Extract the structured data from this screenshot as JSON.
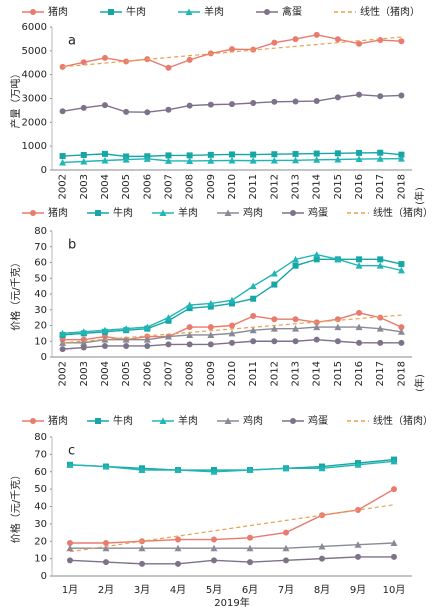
{
  "chart_data": [
    {
      "type": "line",
      "panel_label": "a",
      "ylabel": "产量（万吨）",
      "xlabel": "(年)",
      "categories": [
        "2002",
        "2003",
        "2004",
        "2005",
        "2006",
        "2007",
        "2008",
        "2009",
        "2010",
        "2011",
        "2012",
        "2013",
        "2014",
        "2015",
        "2016",
        "2017",
        "2018"
      ],
      "ylim": [
        0,
        6000
      ],
      "yticks": [
        0,
        1000,
        2000,
        3000,
        4000,
        5000,
        6000
      ],
      "series": [
        {
          "name": "猪肉",
          "color": "#ea7a6e",
          "marker": "circle",
          "values": [
            4327,
            4519,
            4702,
            4555,
            4650,
            4288,
            4621,
            4891,
            5071,
            5053,
            5343,
            5493,
            5671,
            5487,
            5299,
            5452,
            5404
          ]
        },
        {
          "name": "牛肉",
          "color": "#17a6a6",
          "marker": "square",
          "values": [
            585,
            630,
            676,
            568,
            577,
            613,
            613,
            636,
            653,
            648,
            662,
            673,
            689,
            700,
            717,
            726,
            644
          ]
        },
        {
          "name": "羊肉",
          "color": "#22b5b5",
          "marker": "triangle",
          "values": [
            317,
            357,
            399,
            435,
            469,
            383,
            380,
            389,
            399,
            393,
            401,
            408,
            428,
            441,
            459,
            471,
            475
          ]
        },
        {
          "name": "禽蛋",
          "color": "#7d7289",
          "marker": "circle",
          "values": [
            2463,
            2607,
            2724,
            2438,
            2424,
            2529,
            2702,
            2743,
            2762,
            2811,
            2861,
            2876,
            2893,
            3046,
            3161,
            3096,
            3128
          ]
        },
        {
          "name": "线性（猪肉）",
          "color": "#e9a04c",
          "dashed": true,
          "values": [
            4330,
            4408,
            4486,
            4564,
            4642,
            4720,
            4798,
            4876,
            4954,
            5032,
            5110,
            5188,
            5266,
            5344,
            5422,
            5500,
            5578
          ]
        }
      ]
    },
    {
      "type": "line",
      "panel_label": "b",
      "ylabel": "价格（元/千克）",
      "xlabel": "(年)",
      "categories": [
        "2002",
        "2003",
        "2004",
        "2005",
        "2006",
        "2007",
        "2008",
        "2009",
        "2010",
        "2011",
        "2012",
        "2013",
        "2014",
        "2015",
        "2016",
        "2017",
        "2018"
      ],
      "ylim": [
        0,
        80
      ],
      "yticks": [
        0,
        10,
        20,
        30,
        40,
        50,
        60,
        70,
        80
      ],
      "series": [
        {
          "name": "猪肉",
          "color": "#ea7a6e",
          "marker": "circle",
          "values": [
            11,
            11,
            13,
            11,
            13,
            13,
            19,
            19,
            20,
            26,
            24,
            24,
            22,
            24,
            28,
            25,
            19
          ]
        },
        {
          "name": "牛肉",
          "color": "#17a6a6",
          "marker": "square",
          "values": [
            14,
            15,
            16,
            17,
            18,
            23,
            31,
            32,
            34,
            37,
            46,
            58,
            62,
            62,
            62,
            62,
            59
          ]
        },
        {
          "name": "羊肉",
          "color": "#22b5b5",
          "marker": "triangle",
          "values": [
            15,
            16,
            17,
            18,
            19,
            25,
            33,
            34,
            36,
            45,
            53,
            62,
            65,
            62,
            58,
            58,
            55
          ]
        },
        {
          "name": "鸡肉",
          "color": "#8a8a96",
          "marker": "triangle",
          "values": [
            9,
            9,
            11,
            11,
            11,
            13,
            14,
            14,
            15,
            17,
            18,
            18,
            19,
            19,
            19,
            18,
            16
          ]
        },
        {
          "name": "鸡蛋",
          "color": "#7d7289",
          "marker": "circle",
          "values": [
            5,
            6,
            7,
            7,
            7,
            8,
            8,
            8,
            9,
            10,
            10,
            10,
            11,
            10,
            9,
            9,
            9
          ]
        },
        {
          "name": "线性（猪肉）",
          "color": "#e9a04c",
          "dashed": true,
          "values": [
            9,
            10.1,
            11.2,
            12.3,
            13.4,
            14.5,
            15.6,
            16.7,
            17.8,
            18.9,
            20,
            21.1,
            22.2,
            23.3,
            24.4,
            25.5,
            26.6
          ]
        }
      ]
    },
    {
      "type": "line",
      "panel_label": "c",
      "ylabel": "价格（元/千克）",
      "xlabel": "2019年",
      "categories": [
        "1月",
        "2月",
        "3月",
        "4月",
        "5月",
        "6月",
        "7月",
        "8月",
        "9月",
        "10月"
      ],
      "ylim": [
        0,
        80
      ],
      "yticks": [
        0,
        10,
        20,
        30,
        40,
        50,
        60,
        70,
        80
      ],
      "series": [
        {
          "name": "猪肉",
          "color": "#ea7a6e",
          "marker": "circle",
          "values": [
            19,
            19,
            20,
            21,
            21,
            22,
            25,
            35,
            38,
            50
          ]
        },
        {
          "name": "牛肉",
          "color": "#17a6a6",
          "marker": "square",
          "values": [
            64,
            63,
            62,
            61,
            61,
            61,
            62,
            63,
            65,
            67
          ]
        },
        {
          "name": "羊肉",
          "color": "#22b5b5",
          "marker": "triangle",
          "values": [
            64,
            63,
            61,
            61,
            60,
            61,
            62,
            62,
            64,
            66
          ]
        },
        {
          "name": "鸡肉",
          "color": "#8a8a96",
          "marker": "triangle",
          "values": [
            16,
            16,
            16,
            16,
            16,
            16,
            16,
            17,
            18,
            19
          ]
        },
        {
          "name": "鸡蛋",
          "color": "#7d7289",
          "marker": "circle",
          "values": [
            9,
            8,
            7,
            7,
            9,
            8,
            9,
            10,
            11,
            11
          ]
        },
        {
          "name": "线性（猪肉）",
          "color": "#e9a04c",
          "dashed": true,
          "values": [
            14,
            17,
            20,
            23,
            26,
            29,
            32,
            35,
            38,
            41
          ]
        }
      ]
    }
  ]
}
